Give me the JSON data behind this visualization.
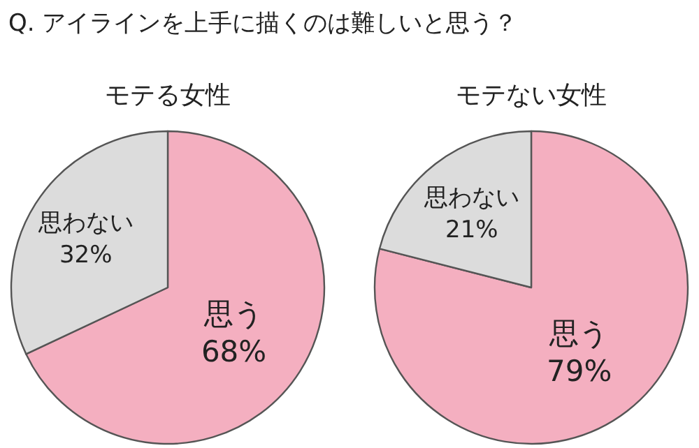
{
  "chart_data": [
    {
      "type": "pie",
      "title": "モテる女性",
      "annotations": [
        "Q. アイラインを上手に描くのは難しいと思う？"
      ],
      "categories": [
        "思う",
        "思わない"
      ],
      "values": [
        68,
        32
      ],
      "value_labels": [
        "68%",
        "32%"
      ],
      "colors": [
        "#f4afc0",
        "#dcdcdc"
      ]
    },
    {
      "type": "pie",
      "title": "モテない女性",
      "categories": [
        "思う",
        "思わない"
      ],
      "values": [
        79,
        21
      ],
      "value_labels": [
        "79%",
        "21%"
      ],
      "colors": [
        "#f4afc0",
        "#dcdcdc"
      ]
    }
  ]
}
